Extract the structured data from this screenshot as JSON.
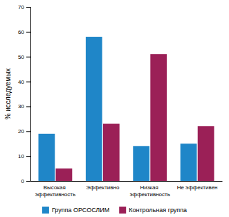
{
  "chart_data": {
    "type": "bar",
    "categories": [
      "Высокая\nэффективность",
      "Эффективно",
      "Низкая\nэффективность",
      "Не эффективен"
    ],
    "series": [
      {
        "name": "Группа ОРСОСЛИМ",
        "color": "#1f86c8",
        "values": [
          19,
          58,
          14,
          15
        ]
      },
      {
        "name": "Контрольная группа",
        "color": "#9b2057",
        "values": [
          5,
          23,
          51,
          22
        ]
      }
    ],
    "ylabel": "% исследуемых",
    "ylim": [
      0,
      70
    ],
    "yticks": [
      0,
      10,
      20,
      30,
      40,
      50,
      60,
      70
    ],
    "grid": false,
    "legend": "bottom"
  }
}
